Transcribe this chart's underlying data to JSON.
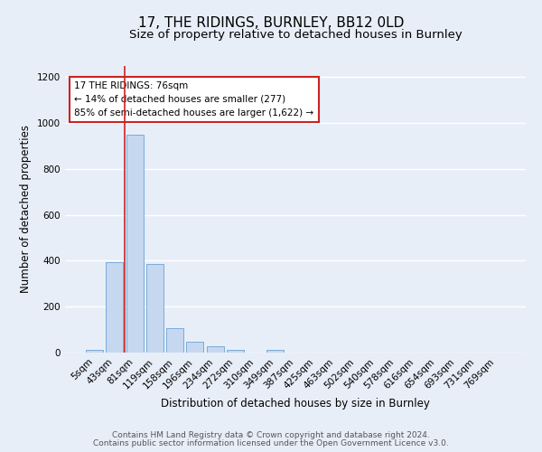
{
  "title": "17, THE RIDINGS, BURNLEY, BB12 0LD",
  "subtitle": "Size of property relative to detached houses in Burnley",
  "xlabel": "Distribution of detached houses by size in Burnley",
  "ylabel": "Number of detached properties",
  "categories": [
    "5sqm",
    "43sqm",
    "81sqm",
    "119sqm",
    "158sqm",
    "196sqm",
    "234sqm",
    "272sqm",
    "310sqm",
    "349sqm",
    "387sqm",
    "425sqm",
    "463sqm",
    "502sqm",
    "540sqm",
    "578sqm",
    "616sqm",
    "654sqm",
    "693sqm",
    "731sqm",
    "769sqm"
  ],
  "values": [
    10,
    395,
    950,
    385,
    108,
    47,
    27,
    12,
    0,
    12,
    0,
    0,
    0,
    0,
    0,
    0,
    0,
    0,
    0,
    0,
    0
  ],
  "bar_color": "#c5d8f0",
  "bar_edge_color": "#7aabda",
  "bg_color": "#e8eef8",
  "grid_color": "#ffffff",
  "vline_x": 1.5,
  "vline_color": "#cc2222",
  "annotation_text": "17 THE RIDINGS: 76sqm\n← 14% of detached houses are smaller (277)\n85% of semi-detached houses are larger (1,622) →",
  "annotation_box_color": "#ffffff",
  "annotation_box_edge": "#cc2222",
  "ylim": [
    0,
    1250
  ],
  "yticks": [
    0,
    200,
    400,
    600,
    800,
    1000,
    1200
  ],
  "footer_line1": "Contains HM Land Registry data © Crown copyright and database right 2024.",
  "footer_line2": "Contains public sector information licensed under the Open Government Licence v3.0.",
  "title_fontsize": 11,
  "subtitle_fontsize": 9.5,
  "axis_label_fontsize": 8.5,
  "tick_fontsize": 7.5,
  "annotation_fontsize": 7.5,
  "footer_fontsize": 6.5
}
